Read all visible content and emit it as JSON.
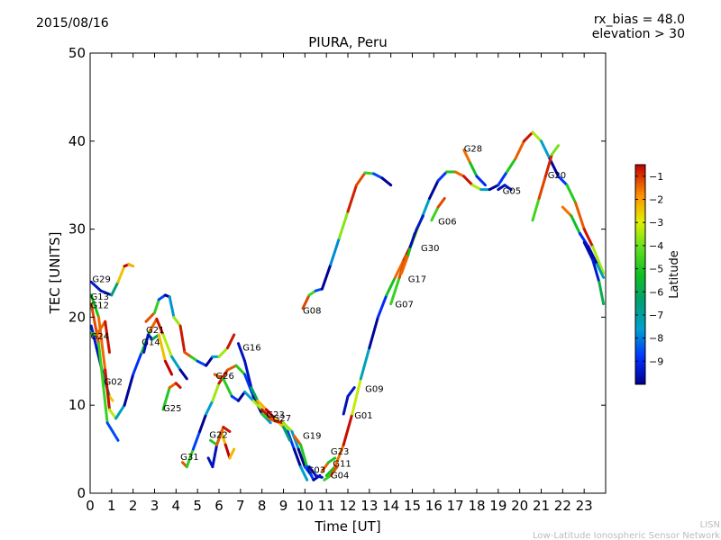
{
  "date_label": "2015/08/16",
  "rx_bias_label": "rx_bias = 48.0",
  "elevation_label": "elevation > 30",
  "footer": {
    "org_short": "LISN",
    "org_long": "Low-Latitude Ionospheric Sensor Network"
  },
  "colors": {
    "axis": "#000000",
    "background": "#ffffff",
    "footer_text": "#bbbbbb"
  },
  "chart_data": {
    "type": "scatter",
    "title": "PIURA, Peru",
    "xlabel": "Time [UT]",
    "ylabel": "TEC [UNITS]",
    "xlim": [
      0,
      24
    ],
    "ylim": [
      0,
      50
    ],
    "xticks": [
      0,
      1,
      2,
      3,
      4,
      5,
      6,
      7,
      8,
      9,
      10,
      11,
      12,
      13,
      14,
      15,
      16,
      17,
      18,
      19,
      20,
      21,
      22,
      23
    ],
    "yticks": [
      0,
      10,
      20,
      30,
      40,
      50
    ],
    "colorbar": {
      "label": "Latitude",
      "range": [
        -10,
        -0.5
      ],
      "ticks": [
        -1,
        -2,
        -3,
        -4,
        -5,
        -6,
        -7,
        -8,
        -9
      ]
    },
    "series": [
      {
        "name": "G01_main",
        "points": [
          [
            11.0,
            2.0
          ],
          [
            11.4,
            3.0
          ],
          [
            11.8,
            5.5
          ],
          [
            12.2,
            9.0
          ],
          [
            12.6,
            13.0
          ],
          [
            13.0,
            16.5
          ],
          [
            13.4,
            20.0
          ],
          [
            13.8,
            22.5
          ],
          [
            14.2,
            24.5
          ],
          [
            14.6,
            26.5
          ],
          [
            15.0,
            28.5
          ],
          [
            15.4,
            31.0
          ],
          [
            15.8,
            33.5
          ],
          [
            16.2,
            35.5
          ],
          [
            16.6,
            36.5
          ],
          [
            17.0,
            36.5
          ],
          [
            17.4,
            36.0
          ],
          [
            17.8,
            35.0
          ],
          [
            18.2,
            34.5
          ],
          [
            18.6,
            34.5
          ],
          [
            19.0,
            35.0
          ],
          [
            19.4,
            36.5
          ],
          [
            19.8,
            38.0
          ],
          [
            20.2,
            40.0
          ],
          [
            20.6,
            41.0
          ],
          [
            21.0,
            40.0
          ],
          [
            21.4,
            38.0
          ],
          [
            21.8,
            36.0
          ],
          [
            22.2,
            35.0
          ],
          [
            22.6,
            33.0
          ],
          [
            23.0,
            30.0
          ],
          [
            23.4,
            28.0
          ],
          [
            23.9,
            25.0
          ]
        ]
      },
      {
        "name": "G08_arc",
        "points": [
          [
            9.9,
            21.0
          ],
          [
            10.2,
            22.5
          ],
          [
            10.5,
            23.0
          ],
          [
            10.8,
            23.2
          ],
          [
            11.2,
            26.0
          ],
          [
            11.6,
            29.0
          ],
          [
            12.0,
            32.0
          ],
          [
            12.4,
            35.0
          ],
          [
            12.8,
            36.4
          ],
          [
            13.2,
            36.3
          ],
          [
            13.6,
            35.8
          ],
          [
            14.0,
            35.0
          ]
        ]
      },
      {
        "name": "G02",
        "points": [
          [
            0.05,
            19.0
          ],
          [
            0.3,
            16.5
          ],
          [
            0.6,
            13.5
          ],
          [
            0.9,
            11.0
          ],
          [
            1.05,
            10.5
          ]
        ]
      },
      {
        "name": "G13",
        "points": [
          [
            0.05,
            22.5
          ],
          [
            0.4,
            20.0
          ],
          [
            0.7,
            14.0
          ],
          [
            0.9,
            9.5
          ],
          [
            1.2,
            8.5
          ],
          [
            1.6,
            10.0
          ],
          [
            2.0,
            13.5
          ],
          [
            2.4,
            16.0
          ],
          [
            2.8,
            18.5
          ],
          [
            3.1,
            19.8
          ],
          [
            3.4,
            18.0
          ],
          [
            3.8,
            15.5
          ],
          [
            4.2,
            14.0
          ],
          [
            4.5,
            13.0
          ]
        ]
      },
      {
        "name": "G12",
        "points": [
          [
            0.05,
            21.5
          ],
          [
            0.4,
            17.0
          ],
          [
            0.8,
            8.0
          ],
          [
            1.3,
            6.0
          ]
        ]
      },
      {
        "name": "G29",
        "points": [
          [
            0.05,
            24.0
          ],
          [
            0.5,
            23.0
          ],
          [
            1.0,
            22.5
          ],
          [
            1.3,
            24.0
          ],
          [
            1.6,
            25.8
          ],
          [
            1.8,
            26.0
          ],
          [
            2.0,
            25.8
          ]
        ]
      },
      {
        "name": "G24",
        "points": [
          [
            0.05,
            18.2
          ],
          [
            0.3,
            18.0
          ],
          [
            0.7,
            19.5
          ],
          [
            0.9,
            16.0
          ]
        ]
      },
      {
        "name": "G21",
        "points": [
          [
            2.6,
            19.5
          ],
          [
            3.0,
            20.5
          ],
          [
            3.2,
            22.0
          ],
          [
            3.5,
            22.5
          ],
          [
            3.7,
            22.3
          ],
          [
            3.9,
            20.0
          ],
          [
            4.2,
            19.0
          ],
          [
            4.4,
            16.0
          ],
          [
            4.7,
            15.5
          ],
          [
            5.0,
            15.0
          ],
          [
            5.4,
            14.5
          ],
          [
            5.7,
            15.5
          ],
          [
            6.0,
            15.5
          ],
          [
            6.4,
            16.5
          ],
          [
            6.7,
            18.0
          ]
        ]
      },
      {
        "name": "G14",
        "points": [
          [
            2.5,
            16.0
          ],
          [
            2.7,
            18.0
          ],
          [
            2.9,
            17.5
          ],
          [
            3.2,
            18.0
          ],
          [
            3.5,
            15.0
          ],
          [
            3.8,
            13.5
          ]
        ]
      },
      {
        "name": "G25",
        "points": [
          [
            3.4,
            9.5
          ],
          [
            3.7,
            12.0
          ],
          [
            4.0,
            12.5
          ],
          [
            4.2,
            12.0
          ]
        ]
      },
      {
        "name": "G31",
        "points": [
          [
            4.3,
            3.5
          ],
          [
            4.5,
            3.0
          ],
          [
            4.8,
            5.0
          ],
          [
            5.1,
            7.0
          ],
          [
            5.4,
            9.0
          ],
          [
            5.7,
            10.5
          ],
          [
            6.0,
            12.5
          ],
          [
            6.4,
            14.0
          ],
          [
            6.8,
            14.5
          ],
          [
            7.2,
            13.5
          ],
          [
            7.6,
            11.0
          ],
          [
            8.0,
            9.0
          ],
          [
            8.4,
            8.0
          ]
        ]
      },
      {
        "name": "G22",
        "points": [
          [
            5.5,
            4.0
          ],
          [
            5.7,
            3.0
          ],
          [
            5.9,
            5.5
          ],
          [
            6.1,
            7.0
          ],
          [
            6.3,
            5.5
          ],
          [
            6.5,
            4.0
          ],
          [
            6.7,
            5.0
          ]
        ]
      },
      {
        "name": "G22b",
        "points": [
          [
            5.6,
            6.0
          ],
          [
            5.9,
            5.5
          ],
          [
            6.2,
            7.5
          ],
          [
            6.5,
            7.0
          ]
        ]
      },
      {
        "name": "G26",
        "points": [
          [
            5.8,
            13.5
          ],
          [
            6.2,
            13.0
          ],
          [
            6.6,
            11.0
          ],
          [
            6.9,
            10.5
          ],
          [
            7.2,
            11.5
          ],
          [
            7.6,
            10.5
          ],
          [
            8.0,
            9.5
          ],
          [
            8.4,
            8.5
          ],
          [
            8.8,
            8.0
          ],
          [
            9.2,
            7.0
          ],
          [
            9.5,
            5.0
          ],
          [
            9.8,
            3.0
          ],
          [
            10.1,
            1.5
          ]
        ]
      },
      {
        "name": "G16",
        "points": [
          [
            6.9,
            17.0
          ],
          [
            7.2,
            15.0
          ],
          [
            7.5,
            12.0
          ],
          [
            7.8,
            10.5
          ],
          [
            8.2,
            9.5
          ],
          [
            8.6,
            8.5
          ],
          [
            9.0,
            7.5
          ],
          [
            9.3,
            6.0
          ]
        ]
      },
      {
        "name": "G23",
        "points": [
          [
            8.0,
            9.0
          ],
          [
            8.3,
            8.5
          ],
          [
            8.6,
            8.2
          ],
          [
            9.0,
            8.0
          ],
          [
            9.4,
            7.0
          ],
          [
            9.7,
            5.0
          ],
          [
            10.0,
            3.0
          ],
          [
            10.3,
            2.0
          ]
        ]
      },
      {
        "name": "G19",
        "points": [
          [
            9.5,
            6.5
          ],
          [
            9.8,
            5.5
          ],
          [
            10.1,
            3.0
          ],
          [
            10.4,
            1.5
          ],
          [
            10.7,
            2.0
          ]
        ]
      },
      {
        "name": "G03",
        "points": [
          [
            10.2,
            3.0
          ],
          [
            10.5,
            2.0
          ],
          [
            10.8,
            1.8
          ]
        ]
      },
      {
        "name": "G04",
        "points": [
          [
            10.9,
            1.5
          ],
          [
            11.2,
            2.0
          ],
          [
            11.5,
            3.0
          ]
        ]
      },
      {
        "name": "G11",
        "points": [
          [
            10.8,
            2.5
          ],
          [
            11.1,
            3.5
          ],
          [
            11.4,
            4.0
          ]
        ]
      },
      {
        "name": "G09",
        "points": [
          [
            11.8,
            9.0
          ],
          [
            12.0,
            11.0
          ],
          [
            12.3,
            12.0
          ]
        ]
      },
      {
        "name": "G07",
        "points": [
          [
            14.0,
            21.5
          ],
          [
            14.4,
            24.5
          ],
          [
            14.7,
            27.0
          ]
        ]
      },
      {
        "name": "G17",
        "points": [
          [
            14.5,
            25.0
          ],
          [
            14.8,
            27.0
          ],
          [
            15.1,
            29.5
          ]
        ]
      },
      {
        "name": "G30",
        "points": [
          [
            14.9,
            28.0
          ],
          [
            15.2,
            30.0
          ],
          [
            15.5,
            31.5
          ]
        ]
      },
      {
        "name": "G06",
        "points": [
          [
            15.9,
            31.0
          ],
          [
            16.2,
            32.5
          ],
          [
            16.5,
            33.5
          ]
        ]
      },
      {
        "name": "G28",
        "points": [
          [
            17.4,
            39.0
          ],
          [
            17.7,
            37.5
          ],
          [
            18.0,
            36.0
          ],
          [
            18.4,
            35.0
          ]
        ]
      },
      {
        "name": "G05",
        "points": [
          [
            19.0,
            34.5
          ],
          [
            19.3,
            35.0
          ],
          [
            19.6,
            34.5
          ]
        ]
      },
      {
        "name": "G20",
        "points": [
          [
            20.6,
            31.0
          ],
          [
            20.9,
            33.5
          ],
          [
            21.2,
            36.0
          ],
          [
            21.5,
            38.5
          ],
          [
            21.8,
            39.5
          ]
        ]
      },
      {
        "name": "G20b",
        "points": [
          [
            22.0,
            32.5
          ],
          [
            22.4,
            31.5
          ],
          [
            22.8,
            29.5
          ],
          [
            23.2,
            28.0
          ],
          [
            23.6,
            26.0
          ],
          [
            23.9,
            24.5
          ]
        ]
      },
      {
        "name": "tail_right",
        "points": [
          [
            23.0,
            28.5
          ],
          [
            23.4,
            26.5
          ],
          [
            23.7,
            24.0
          ],
          [
            23.9,
            21.5
          ]
        ]
      }
    ],
    "annotations": [
      {
        "text": "G29",
        "x": 0.1,
        "y": 24.0
      },
      {
        "text": "G13",
        "x": 0.02,
        "y": 22.0
      },
      {
        "text": "G12",
        "x": 0.02,
        "y": 21.0
      },
      {
        "text": "G24",
        "x": 0.02,
        "y": 17.5
      },
      {
        "text": "G02",
        "x": 0.65,
        "y": 12.3
      },
      {
        "text": "G21",
        "x": 2.6,
        "y": 18.2
      },
      {
        "text": "G14",
        "x": 2.4,
        "y": 16.8
      },
      {
        "text": "G25",
        "x": 3.4,
        "y": 9.3
      },
      {
        "text": "G26",
        "x": 5.85,
        "y": 13.0
      },
      {
        "text": "G16",
        "x": 7.1,
        "y": 16.2
      },
      {
        "text": "G31",
        "x": 4.2,
        "y": 3.8
      },
      {
        "text": "G22",
        "x": 5.55,
        "y": 6.3
      },
      {
        "text": "G23",
        "x": 8.2,
        "y": 8.6
      },
      {
        "text": "G27",
        "x": 8.5,
        "y": 8.2
      },
      {
        "text": "G19",
        "x": 9.9,
        "y": 6.2
      },
      {
        "text": "G03",
        "x": 10.1,
        "y": 2.3
      },
      {
        "text": "G08",
        "x": 9.9,
        "y": 20.4
      },
      {
        "text": "G09",
        "x": 12.8,
        "y": 11.5
      },
      {
        "text": "G01",
        "x": 12.3,
        "y": 8.5
      },
      {
        "text": "G23",
        "x": 11.2,
        "y": 4.4
      },
      {
        "text": "G11",
        "x": 11.3,
        "y": 3.0
      },
      {
        "text": "G04",
        "x": 11.2,
        "y": 1.7
      },
      {
        "text": "G07",
        "x": 14.2,
        "y": 21.1
      },
      {
        "text": "G17",
        "x": 14.8,
        "y": 24.0
      },
      {
        "text": "G30",
        "x": 15.4,
        "y": 27.5
      },
      {
        "text": "G06",
        "x": 16.2,
        "y": 30.5
      },
      {
        "text": "G28",
        "x": 17.4,
        "y": 38.8
      },
      {
        "text": "G05",
        "x": 19.2,
        "y": 34.0
      },
      {
        "text": "G20",
        "x": 21.3,
        "y": 35.8
      }
    ]
  }
}
